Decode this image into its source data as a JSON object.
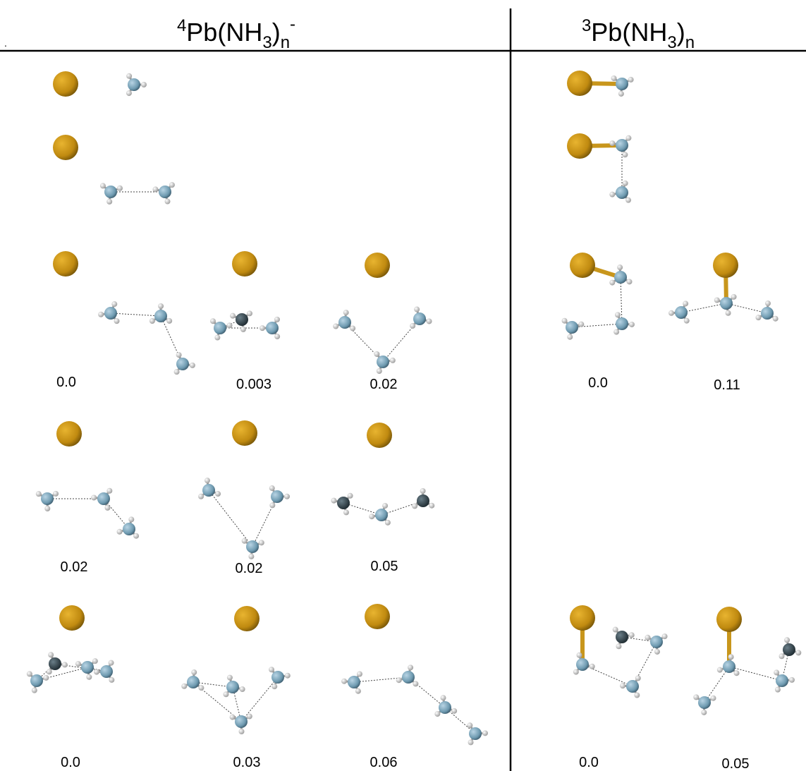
{
  "headers": [
    {
      "pre_sup": "4",
      "main": "Pb(NH",
      "sub1": "3",
      "close": ")",
      "sub2": "n",
      "post_sup": "-"
    },
    {
      "pre_sup": "3",
      "main": "Pb(NH",
      "sub1": "3",
      "close": ")",
      "sub2": "n"
    }
  ],
  "stray_mark": ".",
  "energies": {
    "anion": [
      [
        "0.0",
        "0.003",
        "0.02"
      ],
      [
        "0.02",
        "0.02",
        "0.05"
      ],
      [
        "0.0",
        "0.03",
        "0.06"
      ]
    ],
    "neutral": [
      [
        "0.0",
        "0.11"
      ],
      [
        "0.0",
        "0.05"
      ]
    ]
  }
}
